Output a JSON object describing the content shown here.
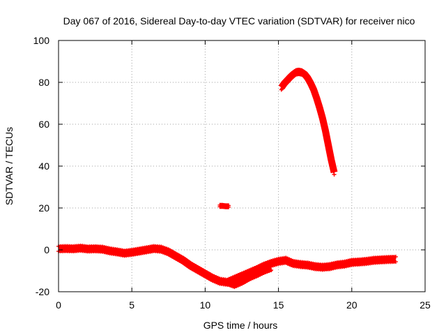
{
  "chart_data": {
    "type": "scatter",
    "title": "Day 067 of 2016, Sidereal Day-to-day VTEC variation (SDTVAR) for receiver nico",
    "xlabel": "GPS time / hours",
    "ylabel": "SDTVAR / TECUs",
    "xlim": [
      0,
      25
    ],
    "ylim": [
      -20,
      100
    ],
    "xticks": [
      0,
      5,
      10,
      15,
      20,
      25
    ],
    "yticks": [
      -20,
      0,
      20,
      40,
      60,
      80,
      100
    ],
    "grid": true,
    "marker": "plus",
    "colors": {
      "series": "#ff0000",
      "grid": "#a0a0a0",
      "axis": "#000000",
      "background": "#ffffff"
    },
    "series": [
      {
        "name": "main-track",
        "band": 1.2,
        "points": [
          [
            0.0,
            0.5
          ],
          [
            0.5,
            0.6
          ],
          [
            1.0,
            0.5
          ],
          [
            1.5,
            0.8
          ],
          [
            2.0,
            0.4
          ],
          [
            2.5,
            0.5
          ],
          [
            3.0,
            0.3
          ],
          [
            3.5,
            -0.5
          ],
          [
            4.0,
            -1.0
          ],
          [
            4.5,
            -1.6
          ],
          [
            5.0,
            -1.2
          ],
          [
            5.5,
            -0.6
          ],
          [
            6.0,
            0.0
          ],
          [
            6.5,
            0.6
          ],
          [
            7.0,
            0.3
          ],
          [
            7.5,
            -1.0
          ],
          [
            8.0,
            -3.0
          ],
          [
            8.5,
            -5.0
          ],
          [
            9.0,
            -7.5
          ],
          [
            9.5,
            -9.5
          ],
          [
            10.0,
            -11.5
          ],
          [
            10.5,
            -13.5
          ],
          [
            11.0,
            -15.0
          ],
          [
            11.5,
            -15.5
          ],
          [
            12.0,
            -14.0
          ],
          [
            12.5,
            -12.5
          ],
          [
            13.0,
            -11.0
          ],
          [
            13.5,
            -9.5
          ],
          [
            14.0,
            -7.8
          ],
          [
            14.5,
            -6.5
          ],
          [
            15.0,
            -5.5
          ],
          [
            15.5,
            -5.0
          ],
          [
            16.0,
            -6.5
          ],
          [
            16.5,
            -7.0
          ],
          [
            17.0,
            -7.3
          ],
          [
            17.5,
            -8.0
          ],
          [
            18.0,
            -8.3
          ],
          [
            18.5,
            -8.0
          ],
          [
            19.0,
            -7.2
          ],
          [
            19.5,
            -6.8
          ],
          [
            20.0,
            -6.0
          ],
          [
            20.5,
            -5.8
          ],
          [
            21.0,
            -5.5
          ],
          [
            21.5,
            -5.0
          ],
          [
            22.0,
            -4.8
          ],
          [
            22.5,
            -4.6
          ],
          [
            23.0,
            -4.5
          ]
        ]
      },
      {
        "name": "satellite-arc",
        "band": 1.0,
        "points": [
          [
            15.2,
            77.5
          ],
          [
            15.4,
            79.5
          ],
          [
            15.6,
            81.0
          ],
          [
            15.8,
            82.5
          ],
          [
            16.0,
            83.8
          ],
          [
            16.2,
            84.8
          ],
          [
            16.4,
            85.0
          ],
          [
            16.6,
            84.7
          ],
          [
            16.8,
            83.8
          ],
          [
            17.0,
            82.0
          ],
          [
            17.2,
            79.5
          ],
          [
            17.4,
            76.5
          ],
          [
            17.6,
            72.5
          ],
          [
            17.8,
            68.0
          ],
          [
            18.0,
            63.0
          ],
          [
            18.2,
            57.0
          ],
          [
            18.4,
            50.0
          ],
          [
            18.6,
            43.0
          ],
          [
            18.8,
            37.0
          ]
        ]
      },
      {
        "name": "dip-branch",
        "band": 1.2,
        "points": [
          [
            11.6,
            -15.5
          ],
          [
            12.0,
            -16.5
          ],
          [
            12.5,
            -15.0
          ],
          [
            13.0,
            -13.0
          ],
          [
            13.5,
            -11.5
          ],
          [
            14.0,
            -9.8
          ],
          [
            14.5,
            -8.5
          ]
        ]
      },
      {
        "name": "isolated-cluster",
        "band": 0.4,
        "points": [
          [
            11.0,
            21.0
          ],
          [
            11.2,
            21.0
          ],
          [
            11.4,
            20.8
          ],
          [
            11.6,
            20.8
          ]
        ]
      }
    ]
  }
}
